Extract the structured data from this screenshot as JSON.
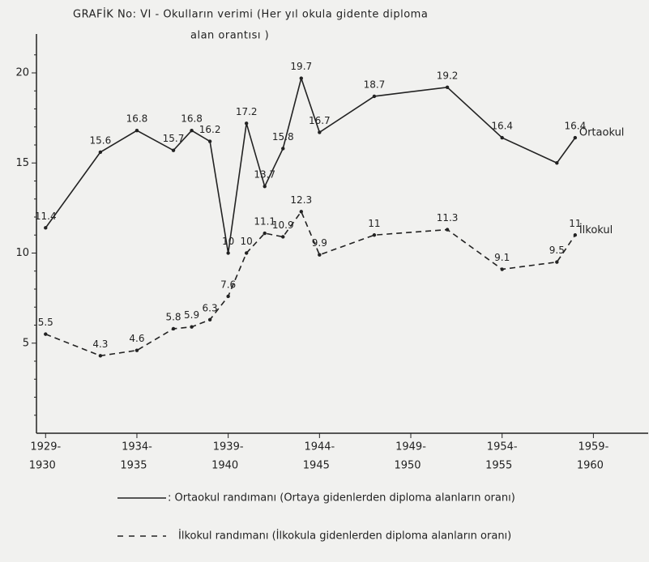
{
  "chart_data": {
    "type": "line",
    "title": [
      "GRAFİK No: VI - Okulların verimi (Her yıl okula gidente diploma",
      "alan orantısı )"
    ],
    "x": [
      1929,
      1932,
      1934,
      1936,
      1937,
      1938,
      1939,
      1940,
      1941,
      1942,
      1943,
      1944,
      1947,
      1951,
      1954,
      1957,
      1958
    ],
    "series": [
      {
        "name": "Ortaokul",
        "color": "#222222",
        "dash": false,
        "description": ": Ortaokul randımanı (Ortaya gidenlerden diploma alanların oranı)",
        "values": [
          11.4,
          15.6,
          16.8,
          15.7,
          16.8,
          16.2,
          10,
          17.2,
          13.7,
          15.8,
          19.7,
          16.7,
          18.7,
          19.2,
          16.4,
          15,
          16.4
        ],
        "value_labels": [
          "11.4",
          "15.6",
          "16.8",
          "15.7",
          "16.8",
          "16.2",
          "10",
          "17.2",
          "13.7",
          "15.8",
          "19.7",
          "16.7",
          "18.7",
          "19.2",
          "16.4",
          null,
          "16.4"
        ]
      },
      {
        "name": "İlkokul",
        "color": "#222222",
        "dash": true,
        "description": "İlkokul randımanı (İlkokula gidenlerden diploma alanların oranı)",
        "values": [
          5.5,
          4.3,
          4.6,
          5.8,
          5.9,
          6.3,
          7.6,
          10,
          11.1,
          10.9,
          12.3,
          9.9,
          11,
          11.3,
          9.1,
          9.5,
          11
        ]
      }
    ],
    "xlim": [
      1928.5,
      1962
    ],
    "xticks": [
      {
        "value": 1929,
        "label": [
          "1929-",
          "1930"
        ]
      },
      {
        "value": 1934,
        "label": [
          "1934-",
          "1935"
        ]
      },
      {
        "value": 1939,
        "label": [
          "1939-",
          "1940"
        ]
      },
      {
        "value": 1944,
        "label": [
          "1944-",
          "1945"
        ]
      },
      {
        "value": 1949,
        "label": [
          "1949-",
          "1950"
        ]
      },
      {
        "value": 1954,
        "label": [
          "1954-",
          "1955"
        ]
      },
      {
        "value": 1959,
        "label": [
          "1959-",
          "1960"
        ]
      }
    ],
    "ylim": [
      0,
      22
    ],
    "yticks": [
      5,
      10,
      15,
      20
    ],
    "yminor_ticks": [
      1,
      2,
      3,
      4,
      6,
      7,
      8,
      9,
      11,
      12,
      13,
      14,
      16,
      17,
      18,
      19,
      21
    ],
    "grid": false
  }
}
